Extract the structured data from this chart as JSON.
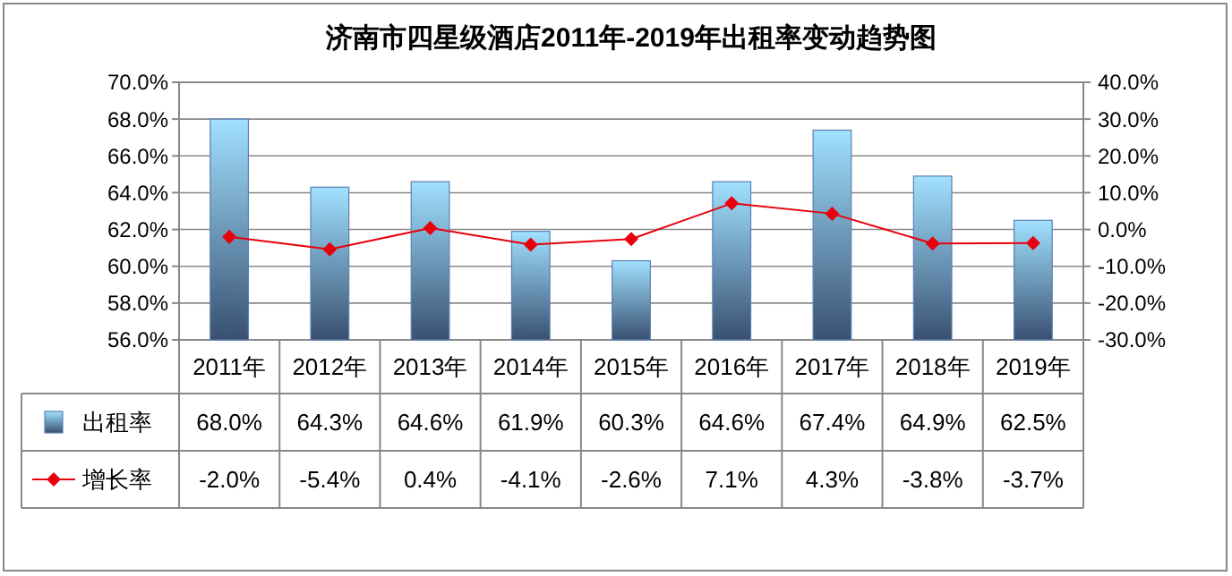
{
  "chart_data": {
    "type": "bar",
    "title": "济南市四星级酒店2011年-2019年出租率变动趋势图",
    "categories": [
      "2011年",
      "2012年",
      "2013年",
      "2014年",
      "2015年",
      "2016年",
      "2017年",
      "2018年",
      "2019年"
    ],
    "series": [
      {
        "name": "出租率",
        "color": "#5b7fb4",
        "values": [
          68.0,
          64.3,
          64.6,
          61.9,
          60.3,
          64.6,
          67.4,
          64.9,
          62.5
        ],
        "value_labels": [
          "68.0%",
          "64.3%",
          "64.6%",
          "61.9%",
          "60.3%",
          "64.6%",
          "67.4%",
          "64.9%",
          "62.5%"
        ]
      },
      {
        "name": "增长率",
        "type": "line",
        "axis": "y2",
        "color": "#e8000b",
        "marker": "diamond",
        "values": [
          -2.0,
          -5.4,
          0.4,
          -4.1,
          -2.6,
          7.1,
          4.3,
          -3.8,
          -3.7
        ],
        "value_labels": [
          "-2.0%",
          "-5.4%",
          "0.4%",
          "-4.1%",
          "-2.6%",
          "7.1%",
          "4.3%",
          "-3.8%",
          "-3.7%"
        ]
      }
    ],
    "ylim": [
      56,
      70
    ],
    "yticks": [
      {
        "value": 56,
        "label": "56.0%"
      },
      {
        "value": 58,
        "label": "58.0%"
      },
      {
        "value": 60,
        "label": "60.0%"
      },
      {
        "value": 62,
        "label": "62.0%"
      },
      {
        "value": 64,
        "label": "64.0%"
      },
      {
        "value": 66,
        "label": "66.0%"
      },
      {
        "value": 68,
        "label": "68.0%"
      },
      {
        "value": 70,
        "label": "70.0%"
      }
    ],
    "y2lim": [
      -30,
      40
    ],
    "y2ticks": [
      {
        "value": -30,
        "label": "-30.0%"
      },
      {
        "value": -20,
        "label": "-20.0%"
      },
      {
        "value": -10,
        "label": "-10.0%"
      },
      {
        "value": 0,
        "label": "0.0%"
      },
      {
        "value": 10,
        "label": "10.0%"
      },
      {
        "value": 20,
        "label": "20.0%"
      },
      {
        "value": 30,
        "label": "30.0%"
      },
      {
        "value": 40,
        "label": "40.0%"
      }
    ],
    "grid": "y",
    "legend": "bottom"
  }
}
